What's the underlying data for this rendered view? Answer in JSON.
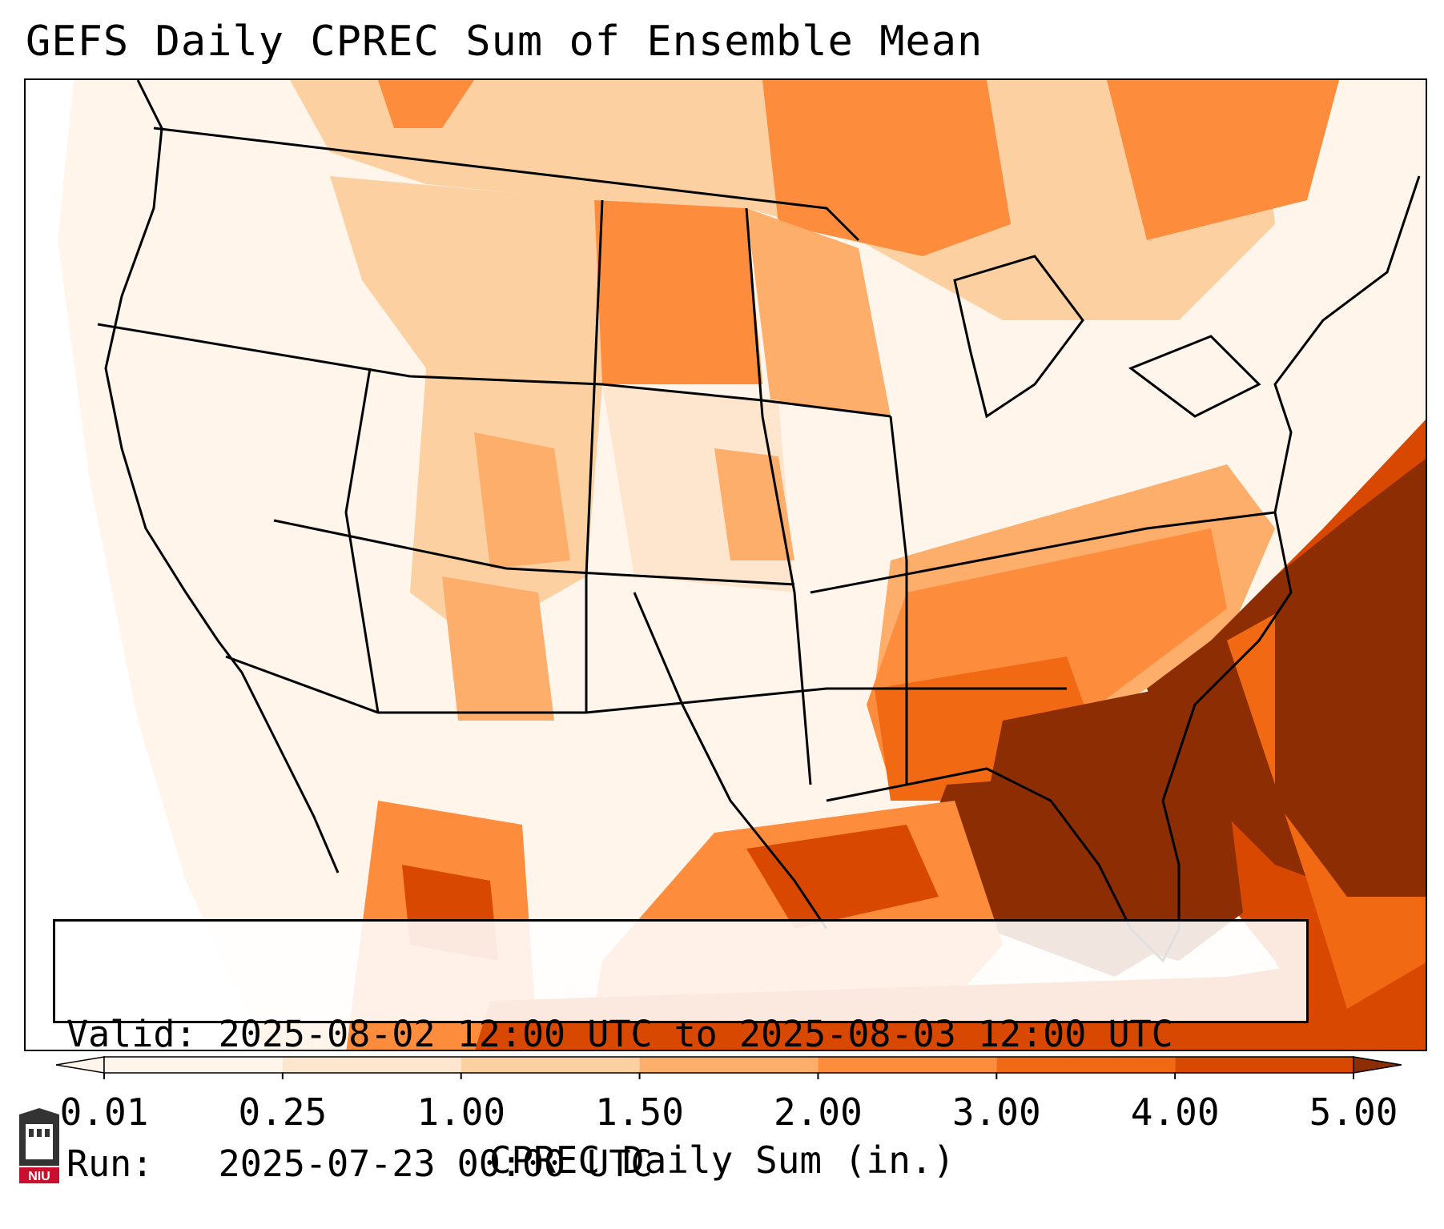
{
  "title": "GEFS Daily CPREC Sum of Ensemble Mean",
  "info": {
    "valid_label": "Valid:",
    "valid_value": "2025-08-02 12:00 UTC to 2025-08-03 12:00 UTC",
    "run_label": "Run:",
    "run_value": "2025-07-23 00:00 UTC"
  },
  "colorbar": {
    "label": "CPREC Daily Sum (in.)",
    "ticks": [
      "0.01",
      "0.25",
      "1.00",
      "1.50",
      "2.00",
      "3.00",
      "4.00",
      "5.00"
    ],
    "colors": [
      "#fff5eb",
      "#fee6ce",
      "#fdd0a2",
      "#fdae6b",
      "#fd8d3c",
      "#f16913",
      "#d94801",
      "#8c2d04"
    ],
    "extend": "both"
  },
  "logo": {
    "text": "NIU",
    "name": "niu-logo"
  },
  "map": {
    "region": "Contiguous United States",
    "colors": {
      "ocean_edge": "#ffffff",
      "lightest": "#fff5eb",
      "light": "#fee6ce",
      "tan": "#fdd0a2",
      "orange_light": "#fdae6b",
      "orange": "#fd8d3c",
      "orange_dark": "#f16913",
      "red_orange": "#d94801",
      "brown": "#8c2d04"
    }
  }
}
